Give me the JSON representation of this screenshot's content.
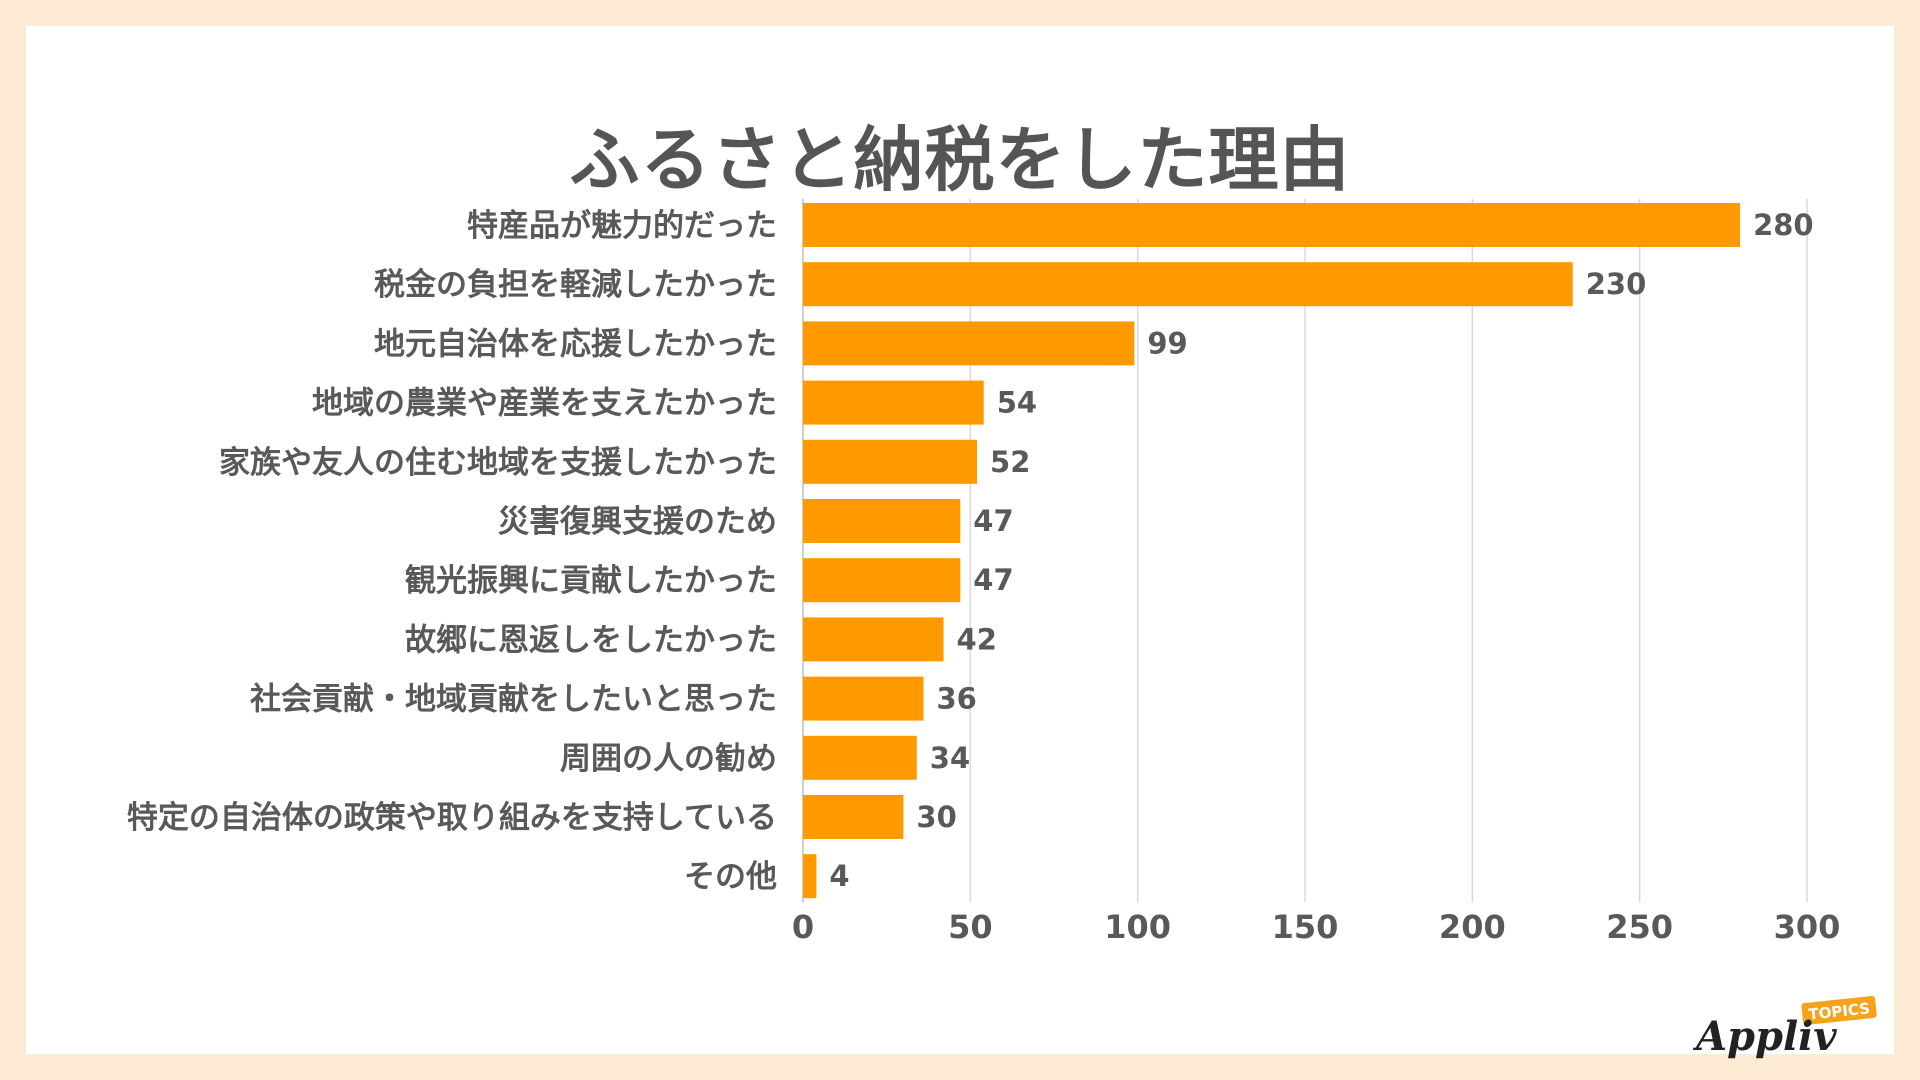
{
  "chart_data": {
    "type": "bar",
    "orientation": "horizontal",
    "title": "ふるさと納税をした理由",
    "categories": [
      "特産品が魅力的だった",
      "税金の負担を軽減したかった",
      "地元自治体を応援したかった",
      "地域の農業や産業を支えたかった",
      "家族や友人の住む地域を支援したかった",
      "災害復興支援のため",
      "観光振興に貢献したかった",
      "故郷に恩返しをしたかった",
      "社会貢献・地域貢献をしたいと思った",
      "周囲の人の勧め",
      "特定の自治体の政策や取り組みを支持している",
      "その他"
    ],
    "values": [
      280,
      230,
      99,
      54,
      52,
      47,
      47,
      42,
      36,
      34,
      30,
      4
    ],
    "xlim": [
      0,
      300
    ],
    "xticks": [
      0,
      50,
      100,
      150,
      200,
      250,
      300
    ],
    "xlabel": "",
    "ylabel": "",
    "grid": true,
    "bar_color": "#ff9900",
    "label_color": "#595959",
    "grid_color": "#d9d9d9"
  },
  "logo": {
    "text": "Appliv",
    "badge": "TOPICS",
    "badge_color": "#f7a21b"
  }
}
